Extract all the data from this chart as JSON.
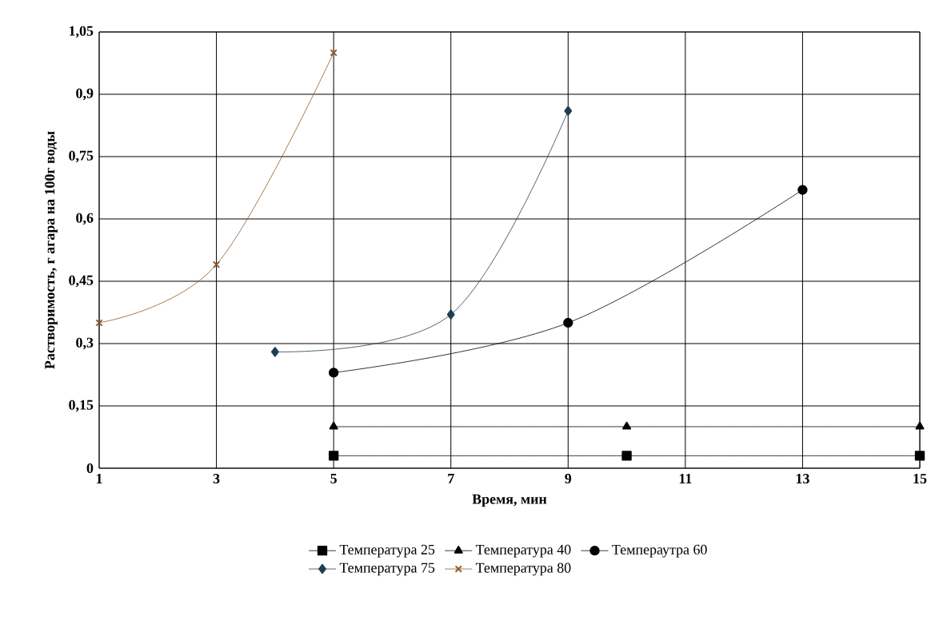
{
  "chart_data": {
    "type": "line",
    "xlabel": "Время, мин",
    "ylabel": "Растворимость, г агара на 100г воды",
    "xlim": [
      1,
      15
    ],
    "xticks": [
      1,
      3,
      5,
      7,
      9,
      11,
      13,
      15
    ],
    "ylim": [
      0,
      1.05
    ],
    "yticks": [
      {
        "value": 0,
        "label": "0"
      },
      {
        "value": 0.15,
        "label": "0,15"
      },
      {
        "value": 0.3,
        "label": "0,3"
      },
      {
        "value": 0.45,
        "label": "0,45"
      },
      {
        "value": 0.6,
        "label": "0,6"
      },
      {
        "value": 0.75,
        "label": "0,75"
      },
      {
        "value": 0.9,
        "label": "0,9"
      },
      {
        "value": 1.05,
        "label": "1,05"
      }
    ],
    "grid": true,
    "legend": "bottom",
    "line_style": "solid",
    "series": [
      {
        "name": "Температура 25",
        "color": "#000000",
        "marker": "square",
        "x": [
          5,
          10,
          15
        ],
        "values": [
          0.03,
          0.03,
          0.03
        ]
      },
      {
        "name": "Температура 40",
        "color": "#000000",
        "marker": "triangle",
        "x": [
          5,
          10,
          15
        ],
        "values": [
          0.1,
          0.1,
          0.1
        ]
      },
      {
        "name": "Темпераутра 60",
        "color": "#000000",
        "marker": "circle",
        "x": [
          5,
          9,
          13
        ],
        "values": [
          0.23,
          0.35,
          0.67
        ]
      },
      {
        "name": "Температура 75",
        "color": "#1f3f4f",
        "marker": "diamond",
        "x": [
          4,
          7,
          9
        ],
        "values": [
          0.28,
          0.37,
          0.86
        ]
      },
      {
        "name": "Температура 80",
        "color": "#8b5a2b",
        "marker": "cross",
        "x": [
          1,
          3,
          5
        ],
        "values": [
          0.35,
          0.49,
          1.0
        ]
      }
    ]
  }
}
